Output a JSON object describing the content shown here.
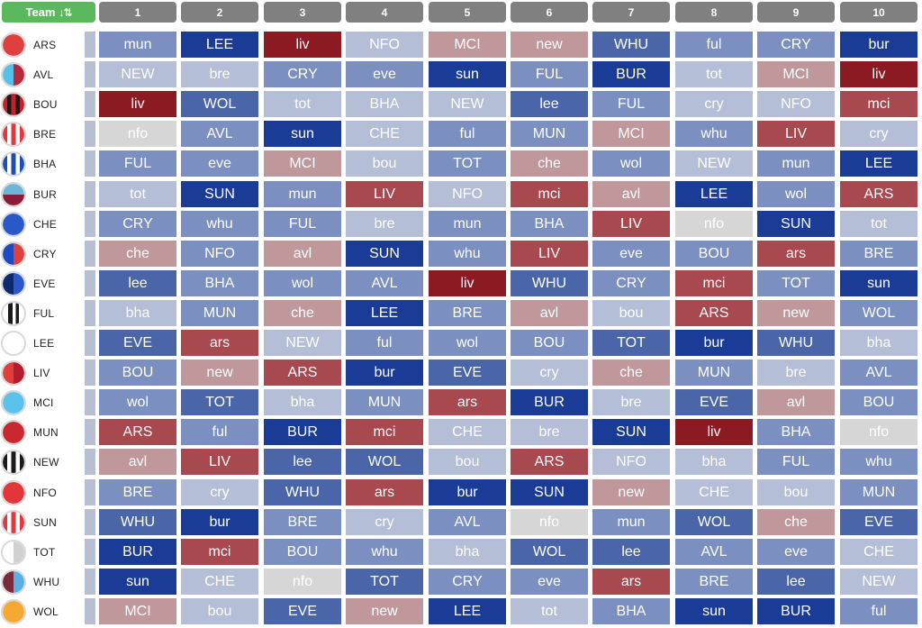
{
  "header": {
    "team_label": "Team",
    "sort_icon": "sort-descending-icon",
    "sort_glyph": "↓⇅",
    "gameweeks": [
      "1",
      "2",
      "3",
      "4",
      "5",
      "6",
      "7",
      "8",
      "9",
      "10"
    ]
  },
  "palette": {
    "1": "#1a3c96",
    "2": "#4a66a9",
    "3": "#7b8fc1",
    "4": "#b4bed6",
    "5": "#d6d6d6",
    "6": "#c0989b",
    "7": "#a8484f",
    "8": "#8b1a22",
    "header_green": "#5cb85c",
    "header_grey": "#808080"
  },
  "teams": [
    {
      "code": "ARS",
      "badge": {
        "type": "solid",
        "c1": "#e0403d"
      },
      "fixtures": [
        [
          "mun",
          3
        ],
        [
          "LEE",
          1
        ],
        [
          "liv",
          8
        ],
        [
          "NFO",
          4
        ],
        [
          "MCI",
          6
        ],
        [
          "new",
          6
        ],
        [
          "WHU",
          2
        ],
        [
          "ful",
          3
        ],
        [
          "CRY",
          3
        ],
        [
          "bur",
          1
        ]
      ]
    },
    {
      "code": "AVL",
      "badge": {
        "type": "split",
        "c1": "#56c0e8",
        "c2": "#b8283c"
      },
      "fixtures": [
        [
          "NEW",
          4
        ],
        [
          "bre",
          4
        ],
        [
          "CRY",
          3
        ],
        [
          "eve",
          3
        ],
        [
          "sun",
          1
        ],
        [
          "FUL",
          3
        ],
        [
          "BUR",
          1
        ],
        [
          "tot",
          4
        ],
        [
          "MCI",
          6
        ],
        [
          "liv",
          8
        ]
      ]
    },
    {
      "code": "BOU",
      "badge": {
        "type": "stripes",
        "c1": "#c81e28",
        "c2": "#1a1a1a",
        "n": 5
      },
      "fixtures": [
        [
          "liv",
          8
        ],
        [
          "WOL",
          2
        ],
        [
          "tot",
          4
        ],
        [
          "BHA",
          4
        ],
        [
          "NEW",
          4
        ],
        [
          "lee",
          2
        ],
        [
          "FUL",
          3
        ],
        [
          "cry",
          4
        ],
        [
          "NFO",
          4
        ],
        [
          "mci",
          7
        ]
      ]
    },
    {
      "code": "BRE",
      "badge": {
        "type": "stripes",
        "c1": "#e03a3e",
        "c2": "#ffffff",
        "n": 5
      },
      "fixtures": [
        [
          "nfo",
          5
        ],
        [
          "AVL",
          3
        ],
        [
          "sun",
          1
        ],
        [
          "CHE",
          4
        ],
        [
          "ful",
          3
        ],
        [
          "MUN",
          3
        ],
        [
          "MCI",
          6
        ],
        [
          "whu",
          3
        ],
        [
          "LIV",
          7
        ],
        [
          "cry",
          4
        ]
      ]
    },
    {
      "code": "BHA",
      "badge": {
        "type": "stripes",
        "c1": "#1d4fb0",
        "c2": "#ffffff",
        "n": 5
      },
      "fixtures": [
        [
          "FUL",
          3
        ],
        [
          "eve",
          3
        ],
        [
          "MCI",
          6
        ],
        [
          "bou",
          4
        ],
        [
          "TOT",
          3
        ],
        [
          "che",
          6
        ],
        [
          "wol",
          3
        ],
        [
          "NEW",
          4
        ],
        [
          "mun",
          3
        ],
        [
          "LEE",
          1
        ]
      ]
    },
    {
      "code": "BUR",
      "badge": {
        "type": "hsplit",
        "c1": "#6cb6dc",
        "c2": "#8a1c3a"
      },
      "fixtures": [
        [
          "tot",
          4
        ],
        [
          "SUN",
          1
        ],
        [
          "mun",
          3
        ],
        [
          "LIV",
          7
        ],
        [
          "NFO",
          4
        ],
        [
          "mci",
          7
        ],
        [
          "avl",
          6
        ],
        [
          "LEE",
          1
        ],
        [
          "wol",
          3
        ],
        [
          "ARS",
          7
        ]
      ]
    },
    {
      "code": "CHE",
      "badge": {
        "type": "solid",
        "c1": "#2a58c8"
      },
      "fixtures": [
        [
          "CRY",
          3
        ],
        [
          "whu",
          3
        ],
        [
          "FUL",
          3
        ],
        [
          "bre",
          4
        ],
        [
          "mun",
          3
        ],
        [
          "BHA",
          3
        ],
        [
          "LIV",
          7
        ],
        [
          "nfo",
          5
        ],
        [
          "SUN",
          1
        ],
        [
          "tot",
          4
        ]
      ]
    },
    {
      "code": "CRY",
      "badge": {
        "type": "split",
        "c1": "#1e4cc0",
        "c2": "#e0403d"
      },
      "fixtures": [
        [
          "che",
          6
        ],
        [
          "NFO",
          3
        ],
        [
          "avl",
          6
        ],
        [
          "SUN",
          1
        ],
        [
          "whu",
          3
        ],
        [
          "LIV",
          7
        ],
        [
          "eve",
          3
        ],
        [
          "BOU",
          3
        ],
        [
          "ars",
          7
        ],
        [
          "BRE",
          3
        ]
      ]
    },
    {
      "code": "EVE",
      "badge": {
        "type": "split",
        "c1": "#0e2a6e",
        "c2": "#2a58c8"
      },
      "fixtures": [
        [
          "lee",
          2
        ],
        [
          "BHA",
          3
        ],
        [
          "wol",
          3
        ],
        [
          "AVL",
          3
        ],
        [
          "liv",
          8
        ],
        [
          "WHU",
          2
        ],
        [
          "CRY",
          3
        ],
        [
          "mci",
          7
        ],
        [
          "TOT",
          3
        ],
        [
          "sun",
          1
        ]
      ]
    },
    {
      "code": "FUL",
      "badge": {
        "type": "bars",
        "c1": "#1a1a1a",
        "c2": "#ffffff"
      },
      "fixtures": [
        [
          "bha",
          4
        ],
        [
          "MUN",
          3
        ],
        [
          "che",
          6
        ],
        [
          "LEE",
          1
        ],
        [
          "BRE",
          3
        ],
        [
          "avl",
          6
        ],
        [
          "bou",
          4
        ],
        [
          "ARS",
          7
        ],
        [
          "new",
          6
        ],
        [
          "WOL",
          3
        ]
      ]
    },
    {
      "code": "LEE",
      "badge": {
        "type": "solid",
        "c1": "#ffffff"
      },
      "fixtures": [
        [
          "EVE",
          2
        ],
        [
          "ars",
          7
        ],
        [
          "NEW",
          4
        ],
        [
          "ful",
          3
        ],
        [
          "wol",
          3
        ],
        [
          "BOU",
          3
        ],
        [
          "TOT",
          2
        ],
        [
          "bur",
          1
        ],
        [
          "WHU",
          2
        ],
        [
          "bha",
          4
        ]
      ]
    },
    {
      "code": "LIV",
      "badge": {
        "type": "split",
        "c1": "#e0403d",
        "c2": "#b01e2e"
      },
      "fixtures": [
        [
          "BOU",
          3
        ],
        [
          "new",
          6
        ],
        [
          "ARS",
          7
        ],
        [
          "bur",
          1
        ],
        [
          "EVE",
          2
        ],
        [
          "cry",
          4
        ],
        [
          "che",
          6
        ],
        [
          "MUN",
          3
        ],
        [
          "bre",
          4
        ],
        [
          "AVL",
          3
        ]
      ]
    },
    {
      "code": "MCI",
      "badge": {
        "type": "solid",
        "c1": "#5bc3ea"
      },
      "fixtures": [
        [
          "wol",
          3
        ],
        [
          "TOT",
          2
        ],
        [
          "bha",
          4
        ],
        [
          "MUN",
          3
        ],
        [
          "ars",
          7
        ],
        [
          "BUR",
          1
        ],
        [
          "bre",
          4
        ],
        [
          "EVE",
          2
        ],
        [
          "avl",
          6
        ],
        [
          "BOU",
          3
        ]
      ]
    },
    {
      "code": "MUN",
      "badge": {
        "type": "solid",
        "c1": "#c8282e"
      },
      "fixtures": [
        [
          "ARS",
          7
        ],
        [
          "ful",
          3
        ],
        [
          "BUR",
          1
        ],
        [
          "mci",
          7
        ],
        [
          "CHE",
          4
        ],
        [
          "bre",
          4
        ],
        [
          "SUN",
          1
        ],
        [
          "liv",
          8
        ],
        [
          "BHA",
          3
        ],
        [
          "nfo",
          5
        ]
      ]
    },
    {
      "code": "NEW",
      "badge": {
        "type": "stripes",
        "c1": "#1a1a1a",
        "c2": "#ffffff",
        "n": 5
      },
      "fixtures": [
        [
          "avl",
          6
        ],
        [
          "LIV",
          7
        ],
        [
          "lee",
          2
        ],
        [
          "WOL",
          2
        ],
        [
          "bou",
          4
        ],
        [
          "ARS",
          7
        ],
        [
          "NFO",
          4
        ],
        [
          "bha",
          4
        ],
        [
          "FUL",
          3
        ],
        [
          "whu",
          3
        ]
      ]
    },
    {
      "code": "NFO",
      "badge": {
        "type": "solid",
        "c1": "#e4353b"
      },
      "fixtures": [
        [
          "BRE",
          3
        ],
        [
          "cry",
          4
        ],
        [
          "WHU",
          2
        ],
        [
          "ars",
          7
        ],
        [
          "bur",
          1
        ],
        [
          "SUN",
          1
        ],
        [
          "new",
          6
        ],
        [
          "CHE",
          4
        ],
        [
          "bou",
          4
        ],
        [
          "MUN",
          3
        ]
      ]
    },
    {
      "code": "SUN",
      "badge": {
        "type": "stripes",
        "c1": "#e03a3e",
        "c2": "#ffffff",
        "n": 5
      },
      "fixtures": [
        [
          "WHU",
          2
        ],
        [
          "bur",
          1
        ],
        [
          "BRE",
          3
        ],
        [
          "cry",
          4
        ],
        [
          "AVL",
          3
        ],
        [
          "nfo",
          5
        ],
        [
          "mun",
          3
        ],
        [
          "WOL",
          2
        ],
        [
          "che",
          6
        ],
        [
          "EVE",
          2
        ]
      ]
    },
    {
      "code": "TOT",
      "badge": {
        "type": "split",
        "c1": "#ffffff",
        "c2": "#d0d0d0"
      },
      "fixtures": [
        [
          "BUR",
          1
        ],
        [
          "mci",
          7
        ],
        [
          "BOU",
          3
        ],
        [
          "whu",
          3
        ],
        [
          "bha",
          4
        ],
        [
          "WOL",
          2
        ],
        [
          "lee",
          2
        ],
        [
          "AVL",
          3
        ],
        [
          "eve",
          3
        ],
        [
          "CHE",
          4
        ]
      ]
    },
    {
      "code": "WHU",
      "badge": {
        "type": "split",
        "c1": "#7a2a3a",
        "c2": "#5ab0e0"
      },
      "fixtures": [
        [
          "sun",
          1
        ],
        [
          "CHE",
          4
        ],
        [
          "nfo",
          5
        ],
        [
          "TOT",
          2
        ],
        [
          "CRY",
          3
        ],
        [
          "eve",
          3
        ],
        [
          "ars",
          7
        ],
        [
          "BRE",
          3
        ],
        [
          "lee",
          2
        ],
        [
          "NEW",
          4
        ]
      ]
    },
    {
      "code": "WOL",
      "badge": {
        "type": "solid",
        "c1": "#f5a832"
      },
      "fixtures": [
        [
          "MCI",
          6
        ],
        [
          "bou",
          4
        ],
        [
          "EVE",
          2
        ],
        [
          "new",
          6
        ],
        [
          "LEE",
          1
        ],
        [
          "tot",
          4
        ],
        [
          "BHA",
          3
        ],
        [
          "sun",
          1
        ],
        [
          "BUR",
          1
        ],
        [
          "ful",
          3
        ]
      ]
    }
  ]
}
